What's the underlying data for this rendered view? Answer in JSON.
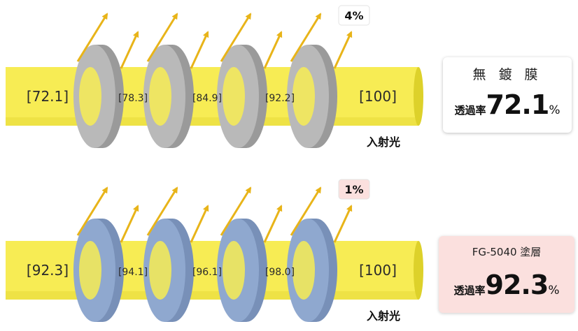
{
  "diagrams": [
    {
      "id": "uncoated",
      "disc_color": "#b9b9b9",
      "disc_edge_color": "#9a9a9a",
      "values": [
        "[72.1]",
        "[78.3]",
        "[84.9]",
        "[92.2]",
        "[100]"
      ],
      "incident_label": "入射光",
      "reflection_label": "4%",
      "reflection_label_bg": "#ffffff",
      "card": {
        "title": "無 鍍 膜",
        "rate_label": "透過率",
        "rate_value": "72.1",
        "rate_unit": "%",
        "bg": "#ffffff"
      }
    },
    {
      "id": "coated",
      "disc_color": "#8fa8cf",
      "disc_edge_color": "#7890b8",
      "values": [
        "[92.3]",
        "[94.1]",
        "[96.1]",
        "[98.0]",
        "[100]"
      ],
      "incident_label": "入射光",
      "reflection_label": "1%",
      "reflection_label_bg": "#fbe0de",
      "card": {
        "title": "FG-5040 塗層",
        "rate_label": "透過率",
        "rate_value": "92.3",
        "rate_unit": "%",
        "bg": "#fbe0de"
      }
    }
  ],
  "colors": {
    "beam": "#f7ec54",
    "beam_shade": "#ddd12a",
    "arrow": "#e8b419"
  }
}
